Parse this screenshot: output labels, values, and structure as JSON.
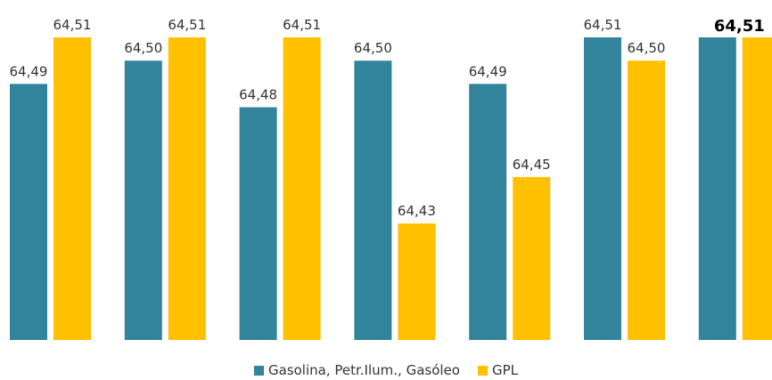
{
  "chart_data": {
    "type": "bar",
    "categories": [
      "",
      "",
      "",
      "",
      "",
      "",
      ""
    ],
    "series": [
      {
        "name": "Gasolina, Petr.Ilum., Gasóleo",
        "values": [
          64.49,
          64.5,
          64.48,
          64.5,
          64.49,
          64.51,
          64.51
        ],
        "labels": [
          "64,49",
          "64,50",
          "64,48",
          "64,50",
          "64,49",
          "64,51",
          ""
        ],
        "color": "#31849B"
      },
      {
        "name": "GPL",
        "values": [
          64.51,
          64.51,
          64.51,
          64.43,
          64.45,
          64.5,
          64.51
        ],
        "labels": [
          "64,51",
          "64,51",
          "64,51",
          "64,43",
          "64,45",
          "64,50",
          ""
        ],
        "color": "#FFC000"
      }
    ],
    "highlight_label": "64,51",
    "ylim": [
      64.38,
      64.51
    ],
    "legend_position": "bottom",
    "grid": false,
    "title": "",
    "xlabel": "",
    "ylabel": ""
  },
  "legend": {
    "series1_label": "Gasolina, Petr.Ilum., Gasóleo",
    "series2_label": "GPL"
  }
}
